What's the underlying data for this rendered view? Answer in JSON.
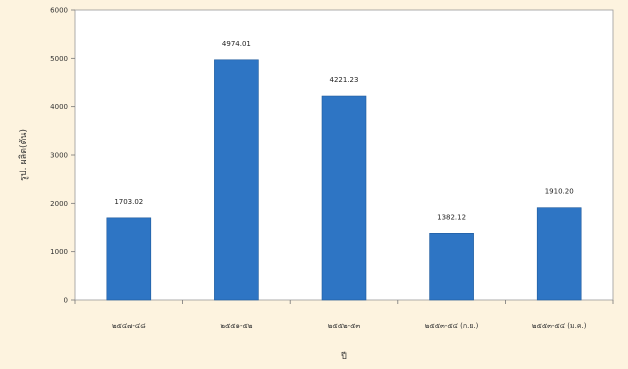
{
  "chart_data": {
    "type": "bar",
    "title": "",
    "xlabel": "ปี",
    "ylabel": "รูป. ผลิต(ตัน)",
    "categories": [
      "๒๕๔๗-๔๘",
      "๒๕๕๑-๕๒",
      "๒๕๕๒-๕๓",
      "๒๕๕๓-๕๔ (ก.ย.)",
      "๒๕๕๓-๕๔ (ม.ค.)"
    ],
    "values": [
      1700,
      4970,
      4220,
      1380,
      1910
    ],
    "data_labels": [
      "1703.02",
      "4974.01",
      "4221.23",
      "1382.12",
      "1910.20"
    ],
    "ylim": [
      0,
      6000
    ],
    "yticks": [
      0,
      1000,
      2000,
      3000,
      4000,
      5000,
      6000
    ],
    "grid": false,
    "legend": "none",
    "colors": {
      "bar": "#2e75c4",
      "bar_edge": "#1f5a9c",
      "plot_background": "#ffffff",
      "page_background": "#fdf3df"
    }
  }
}
